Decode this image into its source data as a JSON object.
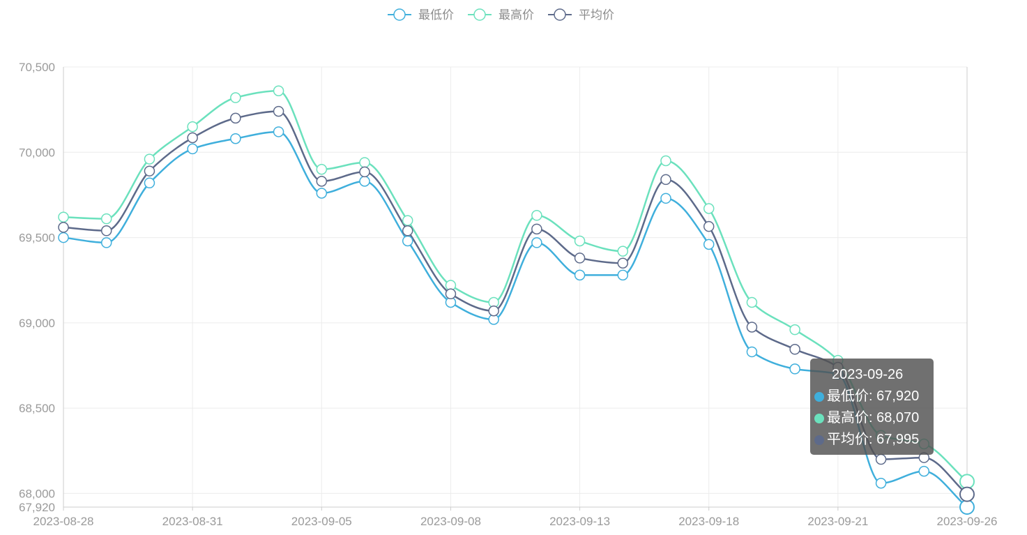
{
  "chart_data": {
    "type": "line",
    "smooth": true,
    "title": "",
    "xlabel": "",
    "ylabel": "",
    "ylim": [
      67920,
      70500
    ],
    "y_ticks": [
      67920,
      68000,
      68500,
      69000,
      69500,
      70000,
      70500
    ],
    "y_tick_labels": [
      "67,920",
      "68,000",
      "68,500",
      "69,000",
      "69,500",
      "70,000",
      "70,500"
    ],
    "x": [
      "2023-08-28",
      "2023-08-29",
      "2023-08-30",
      "2023-08-31",
      "2023-09-01",
      "2023-09-04",
      "2023-09-05",
      "2023-09-06",
      "2023-09-07",
      "2023-09-08",
      "2023-09-11",
      "2023-09-12",
      "2023-09-13",
      "2023-09-14",
      "2023-09-15",
      "2023-09-18",
      "2023-09-19",
      "2023-09-20",
      "2023-09-21",
      "2023-09-22",
      "2023-09-25",
      "2023-09-26"
    ],
    "x_tick_labels": [
      "2023-08-28",
      "2023-08-31",
      "2023-09-05",
      "2023-09-08",
      "2023-09-13",
      "2023-09-18",
      "2023-09-21",
      "2023-09-26"
    ],
    "x_tick_indices": [
      0,
      3,
      6,
      9,
      12,
      15,
      18,
      21
    ],
    "grid": true,
    "legend_position": "top-center",
    "series": [
      {
        "name": "最低价",
        "color": "#3fafdc",
        "values": [
          69500,
          69470,
          69820,
          70020,
          70080,
          70120,
          69760,
          69830,
          69480,
          69120,
          69020,
          69470,
          69280,
          69280,
          69730,
          69460,
          68830,
          68730,
          68700,
          68060,
          68130,
          67920
        ]
      },
      {
        "name": "最高价",
        "color": "#6be1bd",
        "values": [
          69620,
          69610,
          69960,
          70150,
          70320,
          70360,
          69900,
          69940,
          69600,
          69220,
          69120,
          69630,
          69480,
          69420,
          69950,
          69670,
          69120,
          68960,
          68780,
          68340,
          68290,
          68070
        ]
      },
      {
        "name": "平均价",
        "color": "#5d6a8a",
        "values": [
          69560,
          69540,
          69890,
          70085,
          70200,
          70240,
          69830,
          69885,
          69540,
          69170,
          69070,
          69550,
          69380,
          69350,
          69840,
          69565,
          68975,
          68845,
          68740,
          68200,
          68210,
          67995
        ]
      }
    ],
    "tooltip": {
      "title": "2023-09-26",
      "rows": [
        {
          "label": "最低价: 67,920",
          "color": "#3fafdc"
        },
        {
          "label": "最高价: 68,070",
          "color": "#6be1bd"
        },
        {
          "label": "平均价: 67,995",
          "color": "#5d6a8a"
        }
      ]
    }
  }
}
